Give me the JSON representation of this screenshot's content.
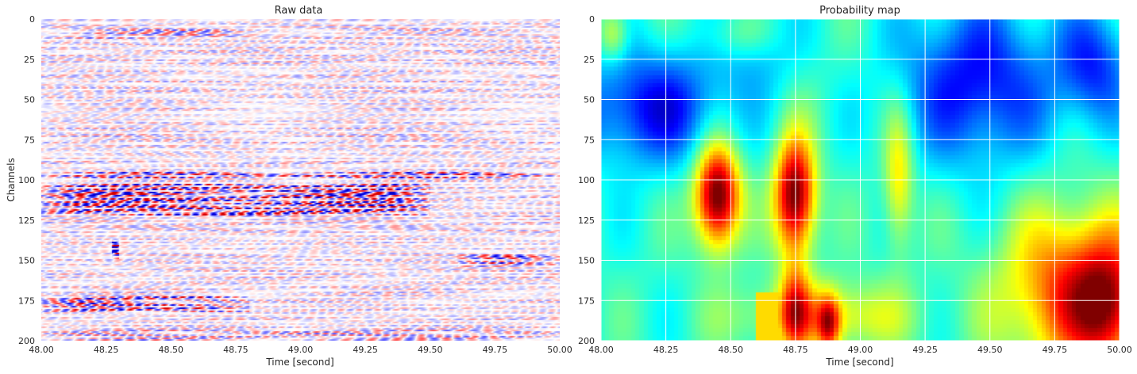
{
  "chart_data": [
    {
      "type": "heatmap",
      "title": "Raw data",
      "xlabel": "Time [second]",
      "ylabel": "Channels",
      "xlim": [
        48.0,
        50.0
      ],
      "ylim": [
        200,
        0
      ],
      "xticks": [
        "48.00",
        "48.25",
        "48.50",
        "48.75",
        "49.00",
        "49.25",
        "49.50",
        "49.75",
        "50.00"
      ],
      "yticks": [
        "0",
        "25",
        "50",
        "75",
        "100",
        "125",
        "150",
        "175",
        "200"
      ],
      "colormap": "seismic",
      "grid": false,
      "features": [
        {
          "t": [
            48.05,
            48.8
          ],
          "ch": [
            6,
            12
          ],
          "amp": 0.6
        },
        {
          "t": [
            48.0,
            50.0
          ],
          "ch": [
            95,
            99
          ],
          "amp": 0.85
        },
        {
          "t": [
            48.0,
            49.5
          ],
          "ch": [
            102,
            122
          ],
          "amp": 1.0
        },
        {
          "t": [
            48.0,
            49.6
          ],
          "ch": [
            124,
            131
          ],
          "amp": 0.35
        },
        {
          "t": [
            49.6,
            50.0
          ],
          "ch": [
            146,
            154
          ],
          "amp": 0.85
        },
        {
          "t": [
            48.0,
            48.8
          ],
          "ch": [
            172,
            182
          ],
          "amp": 0.9
        },
        {
          "t": [
            48.0,
            50.0
          ],
          "ch": [
            193,
            200
          ],
          "amp": 0.55
        }
      ]
    },
    {
      "type": "heatmap",
      "title": "Probability map",
      "xlabel": "Time [second]",
      "ylabel": "",
      "xlim": [
        48.0,
        50.0
      ],
      "ylim": [
        200,
        0
      ],
      "xticks": [
        "48.00",
        "48.25",
        "48.50",
        "48.75",
        "49.00",
        "49.25",
        "49.50",
        "49.75",
        "50.00"
      ],
      "yticks": [
        "0",
        "25",
        "50",
        "75",
        "100",
        "125",
        "150",
        "175",
        "200"
      ],
      "colormap": "jet",
      "grid": true,
      "blobs": [
        {
          "t": 48.45,
          "ch": 110,
          "st": 0.06,
          "sc": 22,
          "v": 0.65
        },
        {
          "t": 48.75,
          "ch": 110,
          "st": 0.055,
          "sc": 25,
          "v": 0.62
        },
        {
          "t": 48.75,
          "ch": 180,
          "st": 0.04,
          "sc": 20,
          "v": 0.3
        },
        {
          "t": 48.88,
          "ch": 190,
          "st": 0.03,
          "sc": 12,
          "v": 0.35
        },
        {
          "t": 49.15,
          "ch": 100,
          "st": 0.04,
          "sc": 30,
          "v": 0.25
        },
        {
          "t": 48.85,
          "ch": 185,
          "st": 0.22,
          "sc": 15,
          "v": 0.25
        },
        {
          "t": 49.85,
          "ch": 170,
          "st": 0.2,
          "sc": 35,
          "v": 0.45
        },
        {
          "t": 49.95,
          "ch": 180,
          "st": 0.08,
          "sc": 25,
          "v": 0.25
        },
        {
          "t": 48.05,
          "ch": 10,
          "st": 0.04,
          "sc": 12,
          "v": 0.2
        },
        {
          "t": 48.55,
          "ch": 10,
          "st": 0.1,
          "sc": 12,
          "v": 0.15
        }
      ],
      "low_regions": [
        {
          "t": 48.2,
          "ch": 55,
          "st": 0.2,
          "sc": 25,
          "v": -0.3
        },
        {
          "t": 49.45,
          "ch": 40,
          "st": 0.2,
          "sc": 35,
          "v": -0.3
        },
        {
          "t": 49.9,
          "ch": 30,
          "st": 0.1,
          "sc": 25,
          "v": -0.25
        },
        {
          "t": 48.6,
          "ch": 15,
          "st": 0.1,
          "sc": 20,
          "v": -0.15
        }
      ]
    }
  ]
}
